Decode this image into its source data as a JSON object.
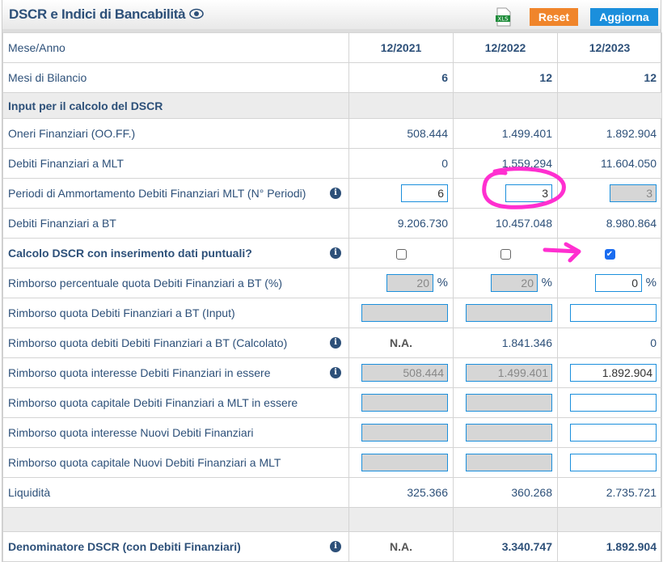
{
  "header": {
    "title": "DSCR e Indici di Bancabilità",
    "xls_label": "XLS",
    "reset_label": "Reset",
    "update_label": "Aggiorna"
  },
  "columns": {
    "label": "Mese/Anno",
    "periods": [
      "12/2021",
      "12/2022",
      "12/2023"
    ]
  },
  "mesi": {
    "label": "Mesi di Bilancio",
    "values": [
      "6",
      "12",
      "12"
    ]
  },
  "section": {
    "label": "Input per il calcolo del DSCR"
  },
  "rows": {
    "oneri": {
      "label": "Oneri Finanziari (OO.FF.)",
      "values": [
        "508.444",
        "1.499.401",
        "1.892.904"
      ]
    },
    "mlt": {
      "label": "Debiti Finanziari a MLT",
      "values": [
        "0",
        "1.559.294",
        "11.604.050"
      ]
    },
    "periodi": {
      "label": "Periodi di Ammortamento Debiti Finanziari MLT (N° Periodi)",
      "values": [
        "6",
        "3",
        "3"
      ]
    },
    "bt": {
      "label": "Debiti Finanziari a BT",
      "values": [
        "9.206.730",
        "10.457.048",
        "8.980.864"
      ]
    },
    "calcolo": {
      "label": "Calcolo DSCR con inserimento dati puntuali?",
      "checked": [
        false,
        false,
        true
      ]
    },
    "rimb_pct": {
      "label": "Rimborso percentuale quota Debiti Finanziari a BT (%)",
      "values": [
        "20",
        "20",
        "0"
      ],
      "unit": "%"
    },
    "rimb_input": {
      "label": "Rimborso quota Debiti Finanziari a BT (Input)",
      "values": [
        "",
        "",
        ""
      ]
    },
    "rimb_calc": {
      "label": "Rimborso quota debiti Debiti Finanziari a BT (Calcolato)",
      "values": [
        "N.A.",
        "1.841.346",
        "0"
      ]
    },
    "rimb_int": {
      "label": "Rimborso quota interesse Debiti Finanziari in essere",
      "values": [
        "508.444",
        "1.499.401",
        "1.892.904"
      ]
    },
    "rimb_cap": {
      "label": "Rimborso quota capitale Debiti Finanziari a MLT in essere",
      "values": [
        "",
        "",
        ""
      ]
    },
    "rimb_int_new": {
      "label": "Rimborso quota interesse Nuovi Debiti Finanziari",
      "values": [
        "",
        "",
        ""
      ]
    },
    "rimb_cap_new": {
      "label": "Rimborso quota capitale Nuovi Debiti Finanziari a MLT",
      "values": [
        "",
        "",
        ""
      ]
    },
    "liquidita": {
      "label": "Liquidità",
      "values": [
        "325.366",
        "360.268",
        "2.735.721"
      ]
    },
    "denominatore": {
      "label": "Denominatore DSCR (con Debiti Finanziari)",
      "values": [
        "N.A.",
        "3.340.747",
        "1.892.904"
      ]
    }
  },
  "colors": {
    "text": "#2d5079",
    "reset": "#f0852b",
    "update": "#1b8fdc",
    "annotation": "#ff2fd0"
  }
}
